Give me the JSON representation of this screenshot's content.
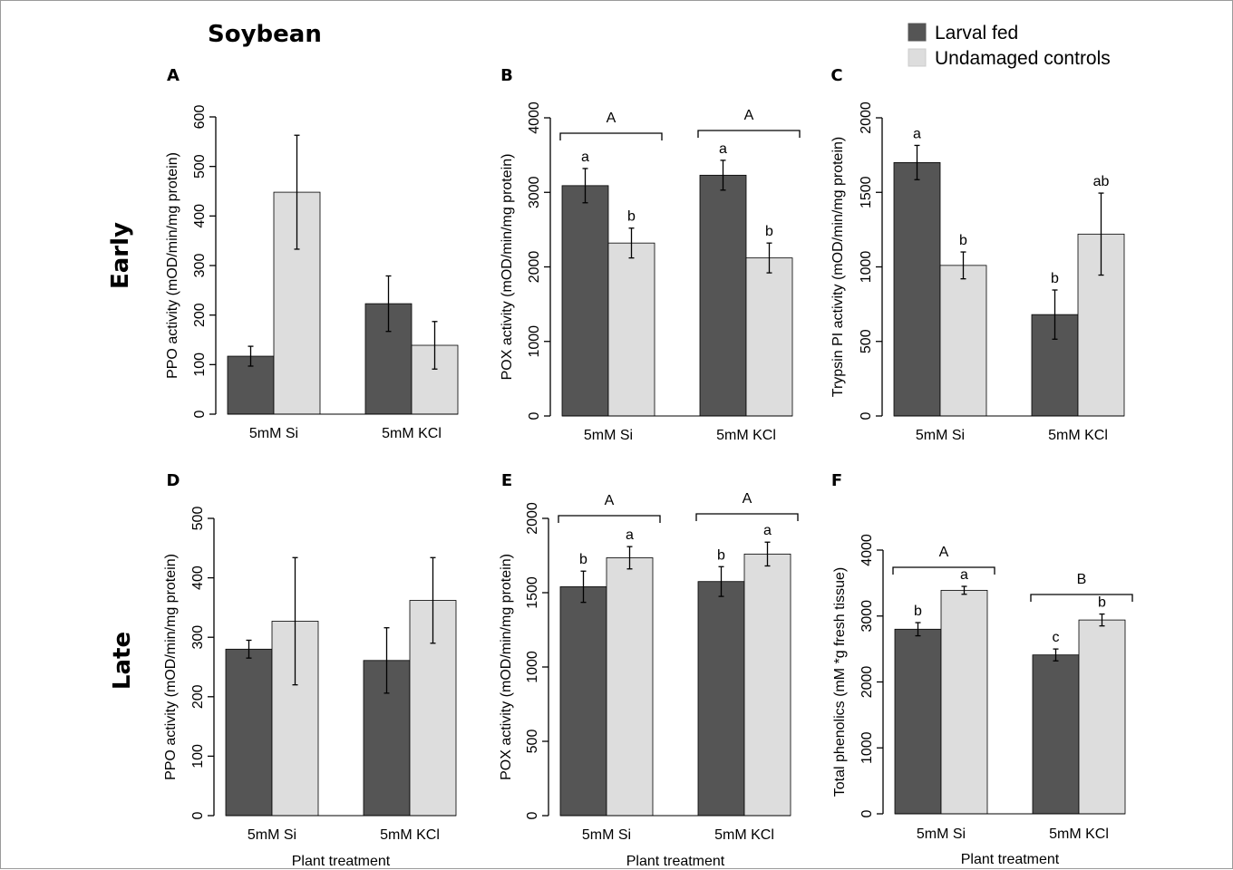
{
  "title": "Soybean",
  "row_labels": [
    "Early",
    "Late"
  ],
  "legend": [
    {
      "label": "Larval fed",
      "color": "#555555"
    },
    {
      "label": "Undamaged controls",
      "color": "#dddddd"
    }
  ],
  "colors": {
    "larval": "#555555",
    "control": "#dddddd",
    "edge": "#000000"
  },
  "xlabel": "Plant treatment",
  "chart_data": [
    {
      "panel": "A",
      "type": "bar",
      "categories": [
        "5mM Si",
        "5mM KCl"
      ],
      "ylabel": "PPO activity (mOD/min/mg protein)",
      "ylim": [
        0,
        600
      ],
      "yticks": [
        0,
        100,
        200,
        300,
        400,
        500,
        600
      ],
      "series": [
        {
          "name": "Larval fed",
          "values": [
            117,
            223
          ],
          "errors": [
            20,
            56
          ],
          "letters": [
            "",
            ""
          ]
        },
        {
          "name": "Undamaged controls",
          "values": [
            448,
            139
          ],
          "errors": [
            115,
            48
          ],
          "letters": [
            "",
            ""
          ]
        }
      ],
      "brackets": []
    },
    {
      "panel": "B",
      "type": "bar",
      "categories": [
        "5mM Si",
        "5mM KCl"
      ],
      "ylabel": "POX activity (mOD/min/mg protein)",
      "ylim": [
        0,
        4000
      ],
      "yticks": [
        0,
        1000,
        2000,
        3000,
        4000
      ],
      "series": [
        {
          "name": "Larval fed",
          "values": [
            3090,
            3230
          ],
          "errors": [
            230,
            200
          ],
          "letters": [
            "a",
            "a"
          ]
        },
        {
          "name": "Undamaged controls",
          "values": [
            2320,
            2120
          ],
          "errors": [
            200,
            200
          ],
          "letters": [
            "b",
            "b"
          ]
        }
      ],
      "brackets": [
        "A",
        "A"
      ]
    },
    {
      "panel": "C",
      "type": "bar",
      "categories": [
        "5mM Si",
        "5mM KCl"
      ],
      "ylabel": "Trypsin PI activity (mOD/min/mg protein)",
      "ylim": [
        0,
        2000
      ],
      "yticks": [
        0,
        500,
        1000,
        1500,
        2000
      ],
      "series": [
        {
          "name": "Larval fed",
          "values": [
            1700,
            680
          ],
          "errors": [
            115,
            165
          ],
          "letters": [
            "a",
            "b"
          ]
        },
        {
          "name": "Undamaged controls",
          "values": [
            1010,
            1220
          ],
          "errors": [
            90,
            275
          ],
          "letters": [
            "b",
            "ab"
          ]
        }
      ],
      "brackets": []
    },
    {
      "panel": "D",
      "type": "bar",
      "categories": [
        "5mM Si",
        "5mM KCl"
      ],
      "ylabel": "PPO activity (mOD/min/mg protein)",
      "ylim": [
        0,
        500
      ],
      "yticks": [
        0,
        100,
        200,
        300,
        400,
        500
      ],
      "series": [
        {
          "name": "Larval fed",
          "values": [
            280,
            261
          ],
          "errors": [
            15,
            55
          ],
          "letters": [
            "",
            ""
          ]
        },
        {
          "name": "Undamaged controls",
          "values": [
            327,
            362
          ],
          "errors": [
            107,
            72
          ],
          "letters": [
            "",
            ""
          ]
        }
      ],
      "brackets": []
    },
    {
      "panel": "E",
      "type": "bar",
      "categories": [
        "5mM Si",
        "5mM KCl"
      ],
      "ylabel": "POX activity (mOD/min/mg protein)",
      "ylim": [
        0,
        2000
      ],
      "yticks": [
        0,
        500,
        1000,
        1500,
        2000
      ],
      "series": [
        {
          "name": "Larval fed",
          "values": [
            1540,
            1575
          ],
          "errors": [
            105,
            100
          ],
          "letters": [
            "b",
            "b"
          ]
        },
        {
          "name": "Undamaged controls",
          "values": [
            1735,
            1760
          ],
          "errors": [
            75,
            80
          ],
          "letters": [
            "a",
            "a"
          ]
        }
      ],
      "brackets": [
        "A",
        "A"
      ]
    },
    {
      "panel": "F",
      "type": "bar",
      "categories": [
        "5mM Si",
        "5mM KCl"
      ],
      "ylabel": "Total phenolics (mM *g fresh tissue)",
      "ylim": [
        0,
        4000
      ],
      "yticks": [
        0,
        1000,
        2000,
        3000,
        4000
      ],
      "series": [
        {
          "name": "Larval fed",
          "values": [
            2800,
            2410
          ],
          "errors": [
            100,
            90
          ],
          "letters": [
            "b",
            "c"
          ]
        },
        {
          "name": "Undamaged controls",
          "values": [
            3390,
            2940
          ],
          "errors": [
            60,
            90
          ],
          "letters": [
            "a",
            "b"
          ]
        }
      ],
      "brackets": [
        "A",
        "B"
      ]
    }
  ]
}
